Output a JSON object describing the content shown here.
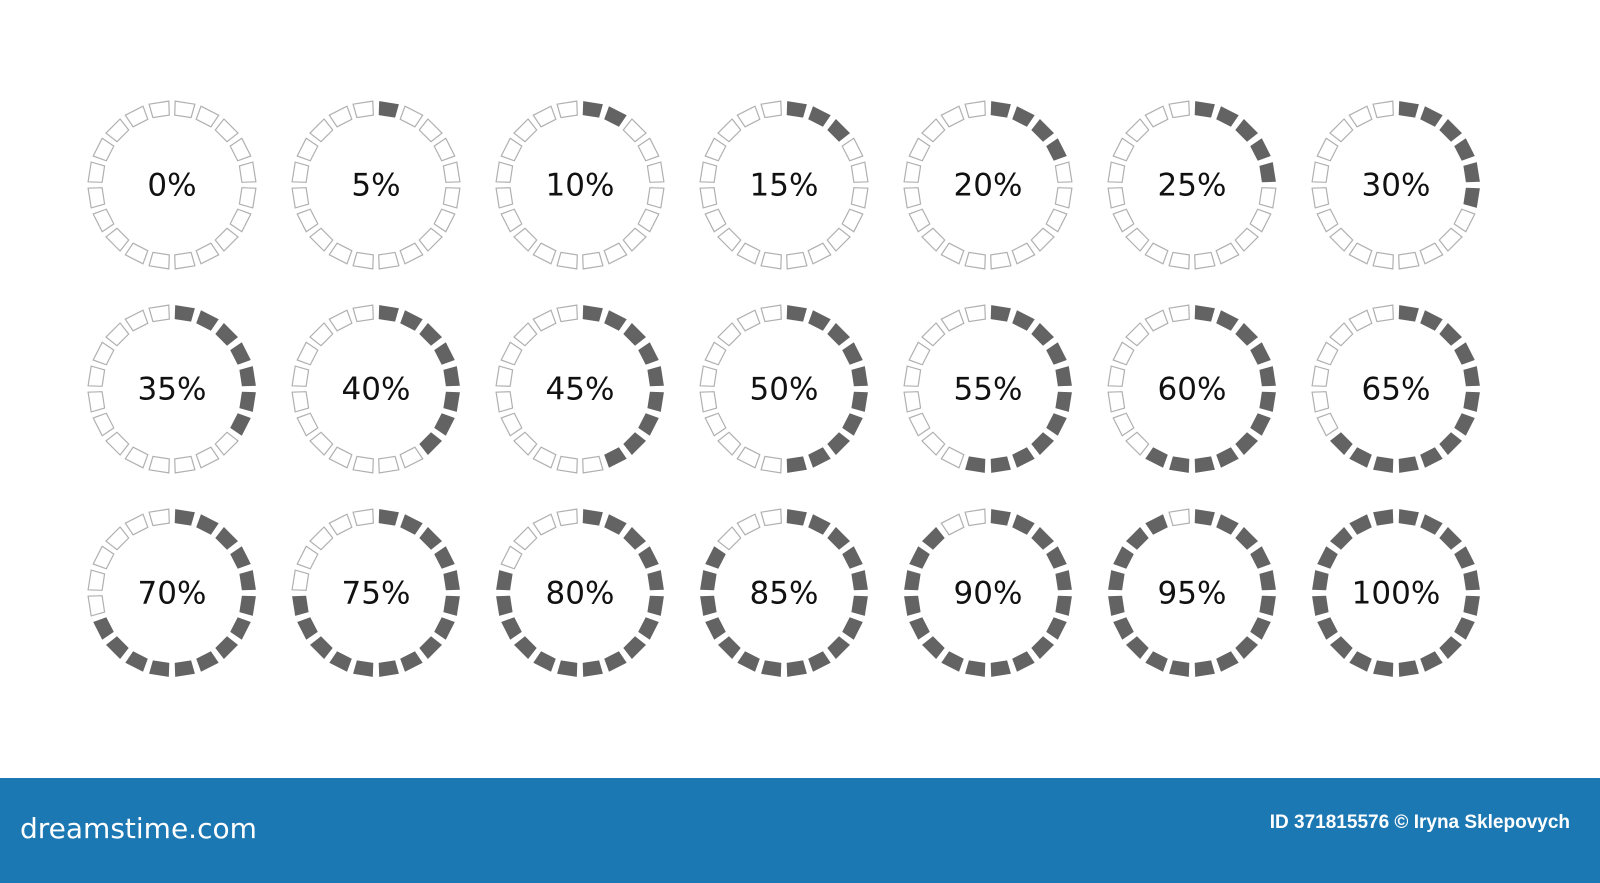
{
  "rings": [
    {
      "label": "0%",
      "value": 0
    },
    {
      "label": "5%",
      "value": 5
    },
    {
      "label": "10%",
      "value": 10
    },
    {
      "label": "15%",
      "value": 15
    },
    {
      "label": "20%",
      "value": 20
    },
    {
      "label": "25%",
      "value": 25
    },
    {
      "label": "30%",
      "value": 30
    },
    {
      "label": "35%",
      "value": 35
    },
    {
      "label": "40%",
      "value": 40
    },
    {
      "label": "45%",
      "value": 45
    },
    {
      "label": "50%",
      "value": 50
    },
    {
      "label": "55%",
      "value": 55
    },
    {
      "label": "60%",
      "value": 60
    },
    {
      "label": "65%",
      "value": 65
    },
    {
      "label": "70%",
      "value": 70
    },
    {
      "label": "75%",
      "value": 75
    },
    {
      "label": "80%",
      "value": 80
    },
    {
      "label": "85%",
      "value": 85
    },
    {
      "label": "90%",
      "value": 90
    },
    {
      "label": "95%",
      "value": 95
    },
    {
      "label": "100%",
      "value": 100
    }
  ],
  "footer": {
    "logo": "dreamstime.com",
    "credit": "ID 371815576 © Iryna Sklepovych"
  }
}
